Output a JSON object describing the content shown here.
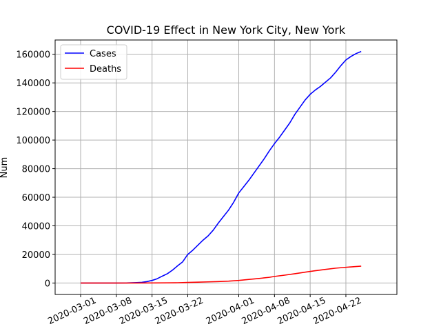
{
  "chart_data": {
    "type": "line",
    "title": "COVID-19 Effect in New York City, New York",
    "xlabel": "",
    "ylabel": "Num",
    "grid": true,
    "legend": "top-left",
    "xlim": [
      "2020-02-25",
      "2020-05-02"
    ],
    "ylim": [
      -8000,
      170000
    ],
    "x_ticks": [
      "2020-03-01",
      "2020-03-08",
      "2020-03-15",
      "2020-03-22",
      "2020-04-01",
      "2020-04-08",
      "2020-04-15",
      "2020-04-22"
    ],
    "y_ticks": [
      0,
      20000,
      40000,
      60000,
      80000,
      100000,
      120000,
      140000,
      160000
    ],
    "y_tick_labels": [
      "0",
      "20000",
      "40000",
      "60000",
      "80000",
      "100000",
      "120000",
      "140000",
      "160000"
    ],
    "series": [
      {
        "name": "Cases",
        "color": "#0000ff",
        "points": [
          [
            "2020-03-01",
            0
          ],
          [
            "2020-03-05",
            0
          ],
          [
            "2020-03-08",
            10
          ],
          [
            "2020-03-10",
            50
          ],
          [
            "2020-03-12",
            300
          ],
          [
            "2020-03-13",
            500
          ],
          [
            "2020-03-14",
            1000
          ],
          [
            "2020-03-15",
            1800
          ],
          [
            "2020-03-16",
            3000
          ],
          [
            "2020-03-17",
            4800
          ],
          [
            "2020-03-18",
            6500
          ],
          [
            "2020-03-19",
            9000
          ],
          [
            "2020-03-20",
            12000
          ],
          [
            "2020-03-21",
            14800
          ],
          [
            "2020-03-22",
            20000
          ],
          [
            "2020-03-23",
            23000
          ],
          [
            "2020-03-24",
            26500
          ],
          [
            "2020-03-25",
            30000
          ],
          [
            "2020-03-26",
            33000
          ],
          [
            "2020-03-27",
            37000
          ],
          [
            "2020-03-28",
            42000
          ],
          [
            "2020-03-29",
            46500
          ],
          [
            "2020-03-30",
            51000
          ],
          [
            "2020-03-31",
            56500
          ],
          [
            "2020-04-01",
            63000
          ],
          [
            "2020-04-02",
            67500
          ],
          [
            "2020-04-03",
            72000
          ],
          [
            "2020-04-04",
            77000
          ],
          [
            "2020-04-05",
            82000
          ],
          [
            "2020-04-06",
            87000
          ],
          [
            "2020-04-07",
            92500
          ],
          [
            "2020-04-08",
            97500
          ],
          [
            "2020-04-09",
            102000
          ],
          [
            "2020-04-10",
            107000
          ],
          [
            "2020-04-11",
            112000
          ],
          [
            "2020-04-12",
            118000
          ],
          [
            "2020-04-13",
            123000
          ],
          [
            "2020-04-14",
            128000
          ],
          [
            "2020-04-15",
            132000
          ],
          [
            "2020-04-16",
            135000
          ],
          [
            "2020-04-17",
            137500
          ],
          [
            "2020-04-18",
            140500
          ],
          [
            "2020-04-19",
            143500
          ],
          [
            "2020-04-20",
            147500
          ],
          [
            "2020-04-21",
            152000
          ],
          [
            "2020-04-22",
            156000
          ],
          [
            "2020-04-23",
            158500
          ],
          [
            "2020-04-24",
            160500
          ],
          [
            "2020-04-25",
            162000
          ]
        ]
      },
      {
        "name": "Deaths",
        "color": "#ff0000",
        "points": [
          [
            "2020-03-01",
            0
          ],
          [
            "2020-03-10",
            0
          ],
          [
            "2020-03-15",
            50
          ],
          [
            "2020-03-18",
            100
          ],
          [
            "2020-03-20",
            200
          ],
          [
            "2020-03-22",
            400
          ],
          [
            "2020-03-24",
            600
          ],
          [
            "2020-03-26",
            800
          ],
          [
            "2020-03-28",
            1000
          ],
          [
            "2020-03-30",
            1300
          ],
          [
            "2020-04-01",
            1800
          ],
          [
            "2020-04-03",
            2500
          ],
          [
            "2020-04-05",
            3200
          ],
          [
            "2020-04-07",
            4000
          ],
          [
            "2020-04-08",
            4600
          ],
          [
            "2020-04-10",
            5500
          ],
          [
            "2020-04-12",
            6500
          ],
          [
            "2020-04-14",
            7600
          ],
          [
            "2020-04-16",
            8600
          ],
          [
            "2020-04-18",
            9500
          ],
          [
            "2020-04-20",
            10400
          ],
          [
            "2020-04-22",
            11000
          ],
          [
            "2020-04-25",
            11800
          ]
        ]
      }
    ]
  }
}
